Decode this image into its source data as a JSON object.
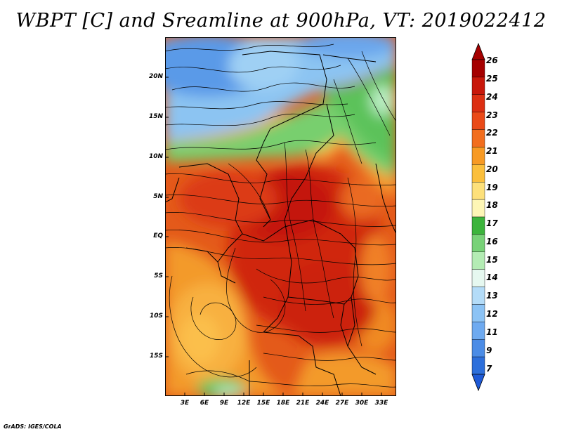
{
  "title": "WBPT [C] and Sreamline at 900hPa, VT: 2019022412",
  "footer": "GrADS: IGES/COLA",
  "map": {
    "lat_labels": [
      "20N",
      "15N",
      "10N",
      "5N",
      "EQ",
      "5S",
      "10S",
      "15S"
    ],
    "lon_labels": [
      "3E",
      "6E",
      "9E",
      "12E",
      "15E",
      "18E",
      "21E",
      "24E",
      "27E",
      "30E",
      "33E"
    ],
    "fields": [
      "wet-bulb potential temperature shading",
      "streamlines",
      "country borders"
    ]
  },
  "colorbar": {
    "labels": [
      "26",
      "25",
      "24",
      "23",
      "22",
      "21",
      "20",
      "19",
      "18",
      "17",
      "16",
      "15",
      "14",
      "13",
      "12",
      "11",
      "9",
      "7"
    ],
    "colors": [
      "#a50000",
      "#c8170a",
      "#dc2f12",
      "#ea4a18",
      "#f26e1e",
      "#f79a24",
      "#fbbf3c",
      "#fde07a",
      "#fdf6b6",
      "#3cb43c",
      "#78d278",
      "#b4ecb4",
      "#e6f8f0",
      "#b4dcf8",
      "#8cc3f5",
      "#6eaaf0",
      "#4b8ce6",
      "#2d6fdb"
    ],
    "bottom_arrow_color": "#1e5ad7",
    "top_arrow_color": "#a50000"
  }
}
